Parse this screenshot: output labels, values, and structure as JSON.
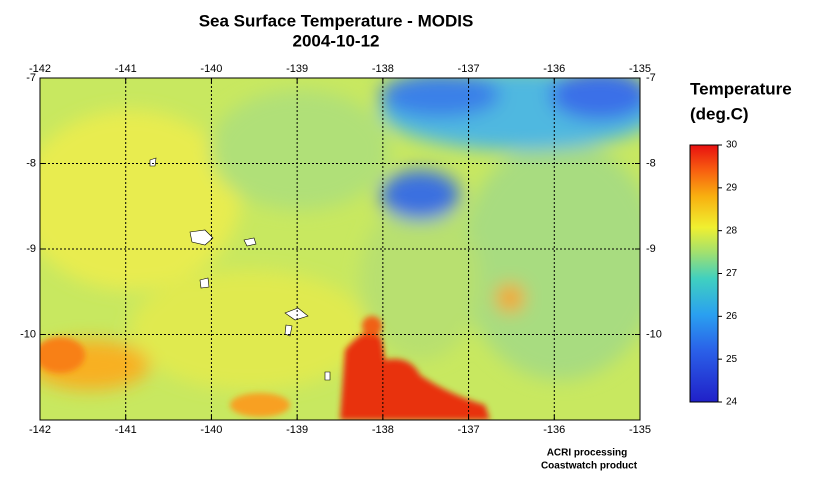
{
  "chart_data": {
    "type": "map",
    "title": "Sea Surface Temperature - MODIS",
    "subtitle": "2004-10-12",
    "xlim": [
      -142,
      -135
    ],
    "xticks": [
      -142,
      -141,
      -140,
      -139,
      -138,
      -137,
      -136,
      -135
    ],
    "ylim": [
      -11,
      -7
    ],
    "yticks": [
      -7,
      -8,
      -9,
      -10
    ],
    "grid": true,
    "colorbar": {
      "title": [
        "Temperature",
        "(deg.C)"
      ],
      "clim": [
        24,
        30
      ],
      "ticks": [
        24,
        25,
        26,
        27,
        28,
        29,
        30
      ]
    },
    "credits": [
      "ACRI processing",
      "Coastwatch product"
    ]
  }
}
